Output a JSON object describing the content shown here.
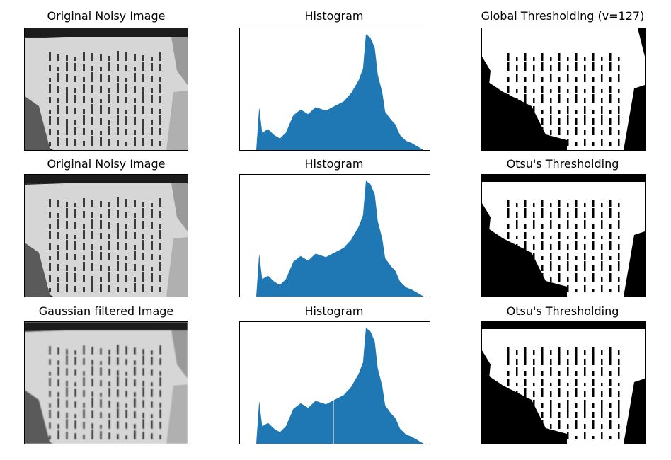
{
  "titles": [
    "Original Noisy Image",
    "Histogram",
    "Global Thresholding (v=127)",
    "Original Noisy Image",
    "Histogram",
    "Otsu's Thresholding",
    "Gaussian filtered Image",
    "Histogram",
    "Otsu's Thresholding"
  ],
  "colors": {
    "histogram": "#1f77b4"
  },
  "chart_data": [
    {
      "type": "bar",
      "title": "Histogram",
      "xlim": [
        0,
        256
      ],
      "x": [
        0,
        10,
        22,
        26,
        30,
        38,
        46,
        54,
        62,
        72,
        82,
        92,
        102,
        116,
        128,
        140,
        150,
        160,
        166,
        170,
        176,
        182,
        186,
        192,
        196,
        204,
        210,
        216,
        224,
        232,
        240,
        248,
        256
      ],
      "values": [
        0,
        0,
        0,
        370,
        150,
        180,
        130,
        100,
        150,
        300,
        350,
        310,
        370,
        340,
        380,
        420,
        490,
        600,
        700,
        1000,
        970,
        880,
        650,
        500,
        330,
        260,
        220,
        130,
        80,
        60,
        30,
        0,
        0
      ]
    },
    {
      "type": "bar",
      "title": "Histogram",
      "xlim": [
        0,
        256
      ],
      "x": [
        0,
        10,
        22,
        26,
        30,
        38,
        46,
        54,
        62,
        72,
        82,
        92,
        102,
        116,
        128,
        140,
        150,
        160,
        166,
        170,
        176,
        182,
        186,
        192,
        196,
        204,
        210,
        216,
        224,
        232,
        240,
        248,
        256
      ],
      "values": [
        0,
        0,
        0,
        370,
        150,
        180,
        130,
        100,
        150,
        300,
        350,
        310,
        370,
        340,
        380,
        420,
        490,
        600,
        700,
        1000,
        970,
        880,
        650,
        500,
        330,
        260,
        220,
        130,
        80,
        60,
        30,
        0,
        0
      ]
    },
    {
      "type": "bar",
      "title": "Histogram",
      "xlim": [
        0,
        256
      ],
      "x": [
        0,
        10,
        22,
        26,
        30,
        38,
        46,
        54,
        62,
        72,
        82,
        92,
        102,
        116,
        128,
        140,
        150,
        160,
        166,
        170,
        176,
        182,
        186,
        192,
        196,
        204,
        210,
        216,
        224,
        232,
        240,
        248,
        256
      ],
      "values": [
        0,
        0,
        0,
        370,
        150,
        180,
        130,
        100,
        150,
        300,
        350,
        310,
        370,
        340,
        380,
        420,
        490,
        600,
        700,
        1000,
        970,
        880,
        650,
        500,
        330,
        260,
        220,
        130,
        80,
        60,
        30,
        0,
        0
      ],
      "threshold_line": 126
    }
  ]
}
